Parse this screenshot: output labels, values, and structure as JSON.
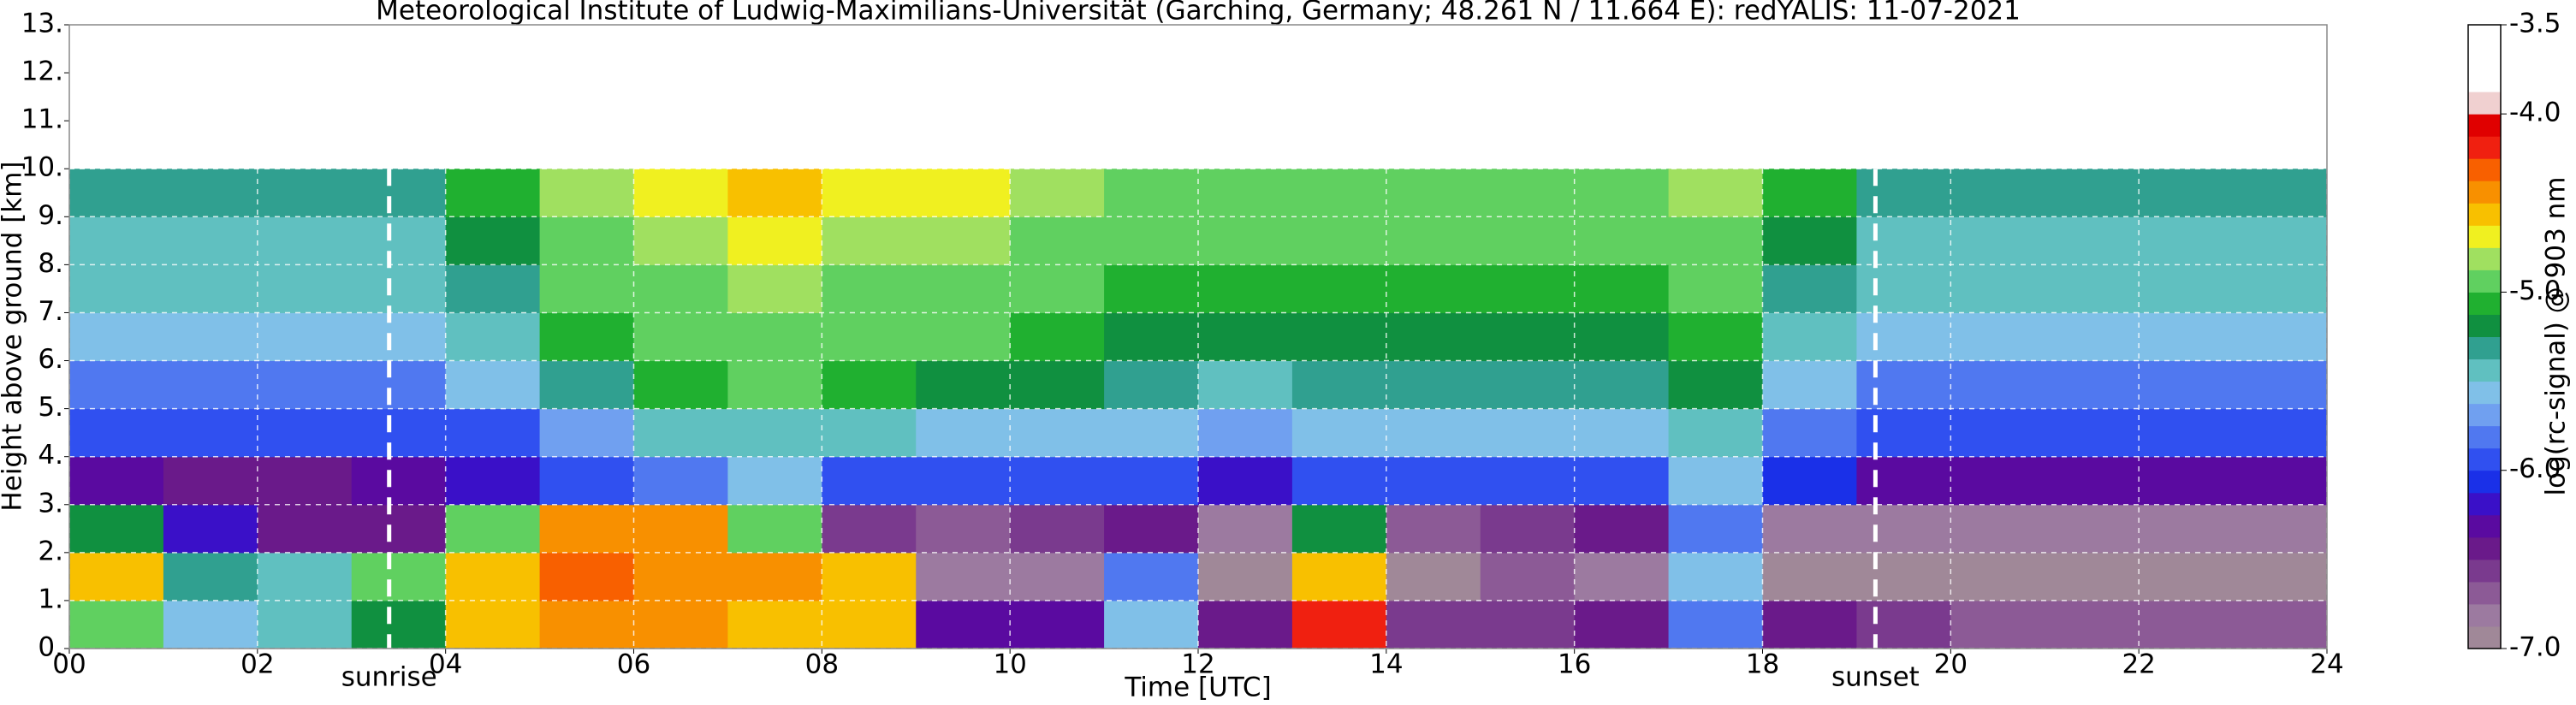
{
  "chart_data": {
    "type": "heatmap",
    "title": "Meteorological Institute of Ludwig-Maximilians-Universität (Garching, Germany; 48.261 N / 11.664 E):    redYALIS: 11-07-2021",
    "x_label": "Time [UTC]",
    "y_label": "Height above ground [km]",
    "colorbar_label": "log(rc-signal) @ 903 nm",
    "xlim": [
      0,
      24
    ],
    "ylim": [
      0,
      13
    ],
    "xticks": [
      {
        "value": 0,
        "label": "00"
      },
      {
        "value": 2,
        "label": "02"
      },
      {
        "value": 4,
        "label": "04"
      },
      {
        "value": 6,
        "label": "06"
      },
      {
        "value": 8,
        "label": "08"
      },
      10,
      12,
      14,
      16,
      18,
      20,
      22,
      24
    ],
    "yticks": [
      {
        "value": 0,
        "label": "0."
      },
      {
        "value": 1,
        "label": "1."
      },
      {
        "value": 2,
        "label": "2."
      },
      {
        "value": 3,
        "label": "3."
      },
      {
        "value": 4,
        "label": "4."
      },
      {
        "value": 5,
        "label": "5."
      },
      {
        "value": 6,
        "label": "6."
      },
      {
        "value": 7,
        "label": "7."
      },
      {
        "value": 8,
        "label": "8."
      },
      {
        "value": 9,
        "label": "9."
      },
      {
        "value": 10,
        "label": "10."
      },
      {
        "value": 11,
        "label": "11."
      },
      {
        "value": 12,
        "label": "12."
      },
      {
        "value": 13,
        "label": "13."
      }
    ],
    "clim": [
      -7.0,
      -3.5
    ],
    "cticks": [
      -3.5,
      {
        "value": -4.0,
        "label": "-4.0"
      },
      {
        "value": -5.0,
        "label": "-5.0"
      },
      {
        "value": -6.0,
        "label": "-6.0"
      },
      {
        "value": -7.0,
        "label": "-7.0"
      }
    ],
    "colormap": [
      "#a08898",
      "#9c7aa0",
      "#8c5a96",
      "#7a3a8e",
      "#6a1a8a",
      "#5a0aa0",
      "#3a10c8",
      "#1a30e8",
      "#3050f0",
      "#5078f0",
      "#70a0f0",
      "#80c0e8",
      "#60c0c0",
      "#30a090",
      "#109040",
      "#20b030",
      "#60d060",
      "#a0e060",
      "#f0f020",
      "#f8c000",
      "#f89000",
      "#f86000",
      "#f02010",
      "#e00000",
      "#f0d0d0",
      "#ffffff",
      "#ffffff",
      "#ffffff"
    ],
    "grid": true,
    "x_edges": [
      0,
      1,
      2,
      3,
      4,
      5,
      6,
      7,
      8,
      9,
      10,
      11,
      12,
      13,
      14,
      15,
      16,
      17,
      18,
      19,
      20,
      21,
      22,
      23,
      24
    ],
    "y_edges": [
      0,
      1,
      2,
      3,
      4,
      5,
      6,
      7,
      8,
      9,
      10
    ],
    "z": [
      [
        -5.0,
        -5.6,
        -5.5,
        -5.2,
        -4.6,
        -4.5,
        -4.4,
        -4.6,
        -4.6,
        -6.3,
        -6.3,
        -5.6,
        -6.5,
        -4.2,
        -6.6,
        -6.6,
        -6.5,
        -5.8,
        -6.4,
        -6.6,
        -6.7,
        -6.7,
        -6.7,
        -6.7
      ],
      [
        -4.6,
        -5.3,
        -5.4,
        -5.0,
        -4.6,
        -4.3,
        -4.4,
        -4.5,
        -4.6,
        -6.8,
        -6.8,
        -5.8,
        -6.9,
        -4.6,
        -6.9,
        -6.7,
        -6.8,
        -5.6,
        -6.9,
        -6.9,
        -6.9,
        -6.9,
        -6.9,
        -6.9
      ],
      [
        -5.2,
        -6.2,
        -6.4,
        -6.4,
        -4.9,
        -4.4,
        -4.5,
        -5.0,
        -6.6,
        -6.7,
        -6.6,
        -6.4,
        -6.8,
        -5.2,
        -6.7,
        -6.6,
        -6.5,
        -5.8,
        -6.8,
        -6.8,
        -6.8,
        -6.8,
        -6.8,
        -6.8
      ],
      [
        -6.3,
        -6.4,
        -6.4,
        -6.3,
        -6.2,
        -6.0,
        -5.8,
        -5.6,
        -5.9,
        -6.0,
        -6.0,
        -6.0,
        -6.2,
        -6.0,
        -6.0,
        -6.0,
        -5.9,
        -5.6,
        -6.1,
        -6.3,
        -6.3,
        -6.3,
        -6.3,
        -6.3
      ],
      [
        -6.0,
        -6.0,
        -6.0,
        -6.0,
        -5.9,
        -5.7,
        -5.5,
        -5.4,
        -5.5,
        -5.6,
        -5.6,
        -5.6,
        -5.7,
        -5.6,
        -5.6,
        -5.6,
        -5.6,
        -5.4,
        -5.8,
        -6.0,
        -6.0,
        -6.0,
        -6.0,
        -6.0
      ],
      [
        -5.8,
        -5.8,
        -5.8,
        -5.8,
        -5.6,
        -5.3,
        -5.1,
        -5.0,
        -5.1,
        -5.2,
        -5.2,
        -5.3,
        -5.4,
        -5.3,
        -5.3,
        -5.3,
        -5.3,
        -5.2,
        -5.6,
        -5.8,
        -5.8,
        -5.8,
        -5.8,
        -5.8
      ],
      [
        -5.6,
        -5.6,
        -5.6,
        -5.6,
        -5.4,
        -5.1,
        -5.0,
        -4.9,
        -5.0,
        -5.0,
        -5.1,
        -5.2,
        -5.2,
        -5.2,
        -5.2,
        -5.2,
        -5.2,
        -5.1,
        -5.4,
        -5.6,
        -5.6,
        -5.6,
        -5.6,
        -5.6
      ],
      [
        -5.5,
        -5.5,
        -5.5,
        -5.5,
        -5.3,
        -5.0,
        -4.9,
        -4.8,
        -4.9,
        -4.9,
        -5.0,
        -5.1,
        -5.1,
        -5.1,
        -5.1,
        -5.1,
        -5.1,
        -5.0,
        -5.3,
        -5.5,
        -5.5,
        -5.5,
        -5.5,
        -5.5
      ],
      [
        -5.4,
        -5.4,
        -5.4,
        -5.4,
        -5.2,
        -4.9,
        -4.8,
        -4.7,
        -4.8,
        -4.8,
        -4.9,
        -5.0,
        -5.0,
        -5.0,
        -5.0,
        -5.0,
        -5.0,
        -4.9,
        -5.2,
        -5.4,
        -5.4,
        -5.4,
        -5.4,
        -5.4
      ],
      [
        -5.3,
        -5.3,
        -5.3,
        -5.3,
        -5.1,
        -4.8,
        -4.7,
        -4.6,
        -4.7,
        -4.7,
        -4.8,
        -4.9,
        -4.9,
        -4.9,
        -4.9,
        -4.9,
        -4.9,
        -4.8,
        -5.1,
        -5.3,
        -5.3,
        -5.3,
        -5.3,
        -5.3
      ]
    ],
    "annotations": [
      {
        "text": "sunrise",
        "x": 3.4
      },
      {
        "text": "sunset",
        "x": 19.2
      }
    ]
  }
}
